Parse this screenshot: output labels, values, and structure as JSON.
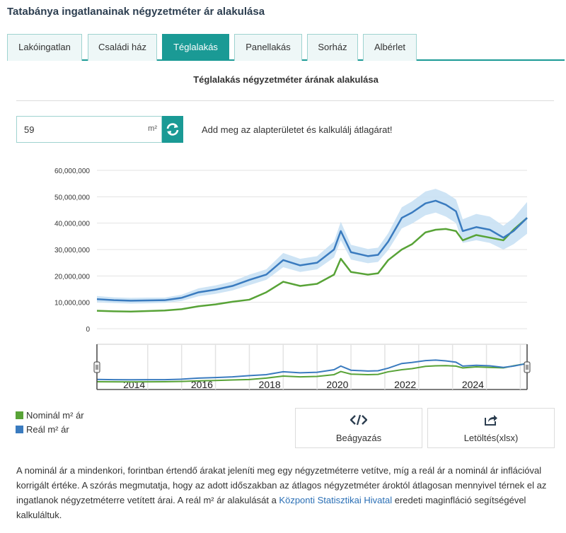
{
  "page": {
    "title": "Tatabánya ingatlanainak négyzetméter ár alakulása"
  },
  "tabs": [
    {
      "label": "Lakóingatlan",
      "active": false
    },
    {
      "label": "Családi ház",
      "active": false
    },
    {
      "label": "Téglalakás",
      "active": true
    },
    {
      "label": "Panellakás",
      "active": false
    },
    {
      "label": "Sorház",
      "active": false
    },
    {
      "label": "Albérlet",
      "active": false
    }
  ],
  "chart_title": "Téglalakás négyzetméter árának alakulása",
  "calculator": {
    "area_value": "59",
    "unit": "m²",
    "hint": "Add meg az alapterületet és kalkulálj átlagárat!"
  },
  "legend": [
    {
      "label": "Nominál m² ár",
      "color": "#58a337"
    },
    {
      "label": "Reál m² ár",
      "color": "#3a7bbf"
    }
  ],
  "buttons": {
    "embed": "Beágyazás",
    "download": "Letöltés(xlsx)"
  },
  "note": {
    "before_link": "A nominál ár a mindenkori, forintban értendő árakat jeleníti meg egy négyzetméterre vetítve, míg a reál ár a nominál ár inflációval korrigált értéke. A szórás megmutatja, hogy az adott időszakban az átlagos négyzetméter ároktól átlagosan mennyivel térnek el az ingatlanok négyzetméterre vetített árai. A reál m² ár alakulását a ",
    "link": "Központi Statisztikai Hivatal",
    "after_link": " eredeti maginfláció segítségével kalkuláltuk."
  },
  "colors": {
    "accent": "#1a9a95",
    "nominal": "#58a337",
    "real": "#3a7bbf",
    "band": "#c9e1f4"
  },
  "chart_data": {
    "type": "line",
    "title": "Téglalakás négyzetméter árának alakulása",
    "xlabel": "",
    "ylabel": "",
    "ylim": [
      0,
      60000000
    ],
    "xlim": [
      2013.0,
      2025.7
    ],
    "yticks": [
      "0",
      "10,000,000",
      "20,000,000",
      "30,000,000",
      "40,000,000",
      "50,000,000",
      "60,000,000"
    ],
    "navigator_labels": [
      "2014",
      "2016",
      "2018",
      "2020",
      "2022",
      "2024"
    ],
    "grid": true,
    "legend_position": "bottom-left",
    "x": [
      2013.0,
      2013.5,
      2014.0,
      2014.5,
      2015.0,
      2015.5,
      2016.0,
      2016.5,
      2017.0,
      2017.5,
      2018.0,
      2018.5,
      2019.0,
      2019.5,
      2020.0,
      2020.2,
      2020.5,
      2021.0,
      2021.3,
      2021.6,
      2022.0,
      2022.3,
      2022.7,
      2023.0,
      2023.3,
      2023.6,
      2023.8,
      2024.2,
      2024.6,
      2025.0,
      2025.3,
      2025.7
    ],
    "series": [
      {
        "name": "Nominál m² ár",
        "values": [
          6800000,
          6600000,
          6500000,
          6700000,
          6900000,
          7400000,
          8500000,
          9200000,
          10200000,
          11000000,
          13800000,
          17800000,
          16200000,
          17000000,
          20500000,
          26500000,
          21500000,
          20500000,
          21000000,
          26000000,
          30000000,
          32000000,
          36500000,
          37500000,
          37800000,
          37000000,
          33500000,
          35500000,
          34500000,
          33500000,
          37500000,
          42000000
        ]
      },
      {
        "name": "Reál m² ár",
        "values": [
          11200000,
          10800000,
          10600000,
          10700000,
          10800000,
          11700000,
          13800000,
          14800000,
          16200000,
          18500000,
          20500000,
          26000000,
          24000000,
          25000000,
          30000000,
          37000000,
          29000000,
          27500000,
          28000000,
          33000000,
          42000000,
          44000000,
          47500000,
          48500000,
          47000000,
          44500000,
          37000000,
          38500000,
          37500000,
          34500000,
          37000000,
          42000000
        ]
      },
      {
        "name": "",
        "values_low": [
          10000000,
          9700000,
          9500000,
          9600000,
          9800000,
          10500000,
          12300000,
          13200000,
          14500000,
          16500000,
          18500000,
          23300000,
          21500000,
          22500000,
          27000000,
          33500000,
          26200000,
          24800000,
          25300000,
          29800000,
          38000000,
          39800000,
          43000000,
          44000000,
          42500000,
          40000000,
          32500000,
          33500000,
          32500000,
          30000000,
          32000000,
          36000000
        ],
        "values_high": [
          12400000,
          11900000,
          11700000,
          11800000,
          11800000,
          12900000,
          15300000,
          16400000,
          17900000,
          20500000,
          22500000,
          28700000,
          26500000,
          27500000,
          33000000,
          40500000,
          31800000,
          30200000,
          30700000,
          36200000,
          46000000,
          48200000,
          52000000,
          53000000,
          51500000,
          49000000,
          41500000,
          43500000,
          42500000,
          39000000,
          42000000,
          48000000
        ]
      }
    ]
  }
}
